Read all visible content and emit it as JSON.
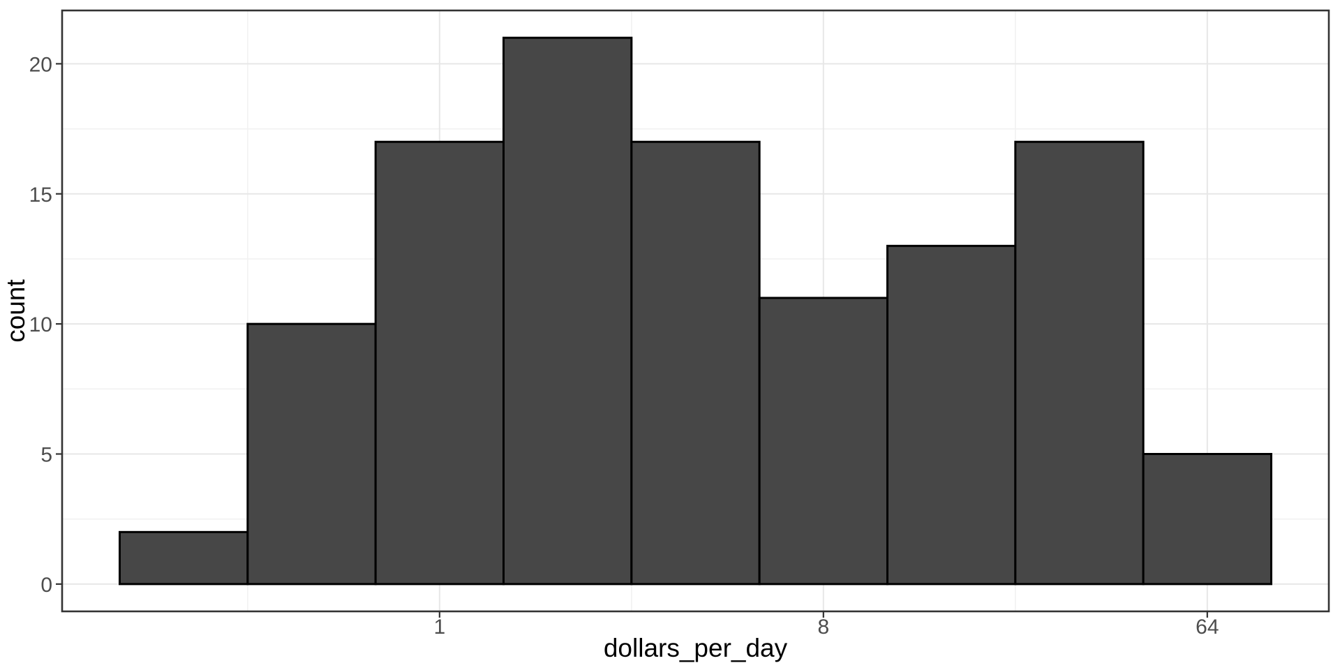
{
  "chart_data": {
    "type": "histogram",
    "title": "",
    "xlabel": "dollars_per_day",
    "ylabel": "count",
    "x_scale": "log2",
    "legend": "none",
    "grid": "major+minor",
    "bin_centers": [
      0.25,
      0.5,
      1,
      2,
      4,
      8,
      16,
      32,
      64
    ],
    "bin_width_log2": 1,
    "counts": [
      2,
      10,
      17,
      21,
      17,
      11,
      13,
      17,
      5
    ],
    "x_ticks": [
      {
        "value": 1,
        "label": "1"
      },
      {
        "value": 8,
        "label": "8"
      },
      {
        "value": 64,
        "label": "64"
      }
    ],
    "x_minor_breaks_log2": [
      -1.5,
      1.5,
      4.5
    ],
    "y_ticks": [
      {
        "value": 0,
        "label": "0"
      },
      {
        "value": 5,
        "label": "5"
      },
      {
        "value": 10,
        "label": "10"
      },
      {
        "value": 15,
        "label": "15"
      },
      {
        "value": 20,
        "label": "20"
      }
    ],
    "y_minor_breaks": [
      2.5,
      7.5,
      12.5,
      17.5
    ],
    "xlim_log2": [
      -2.95,
      6.95
    ],
    "ylim": [
      -1.05,
      22.05
    ]
  },
  "style": {
    "background": "#FFFFFF",
    "panel_background": "#FFFFFF",
    "bar_fill": "#474747",
    "bar_stroke": "#000000",
    "grid_major_color": "#E7E7E7",
    "grid_minor_color": "#F2F2F2",
    "panel_border_color": "#333333",
    "tick_mark_color": "#333333",
    "tick_label_color": "#4D4D4D",
    "axis_title_color": "#000000"
  }
}
